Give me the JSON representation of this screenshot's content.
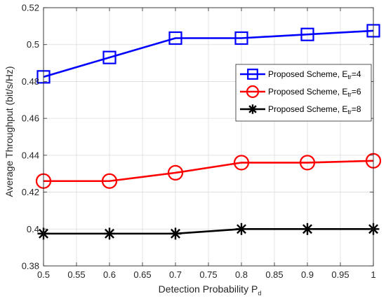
{
  "chart_data": {
    "type": "line",
    "xlabel": "Detection Probability P",
    "xlabel_sub": "d",
    "ylabel": "Average Throughput (bit/s/Hz)",
    "xlim": [
      0.5,
      1.0
    ],
    "ylim": [
      0.38,
      0.52
    ],
    "xticks": [
      0.5,
      0.55,
      0.6,
      0.65,
      0.7,
      0.75,
      0.8,
      0.85,
      0.9,
      0.95,
      1.0
    ],
    "xtick_labels": [
      "0.5",
      "0.55",
      "0.6",
      "0.65",
      "0.7",
      "0.75",
      "0.8",
      "0.85",
      "0.9",
      "0.95",
      "1"
    ],
    "yticks": [
      0.38,
      0.4,
      0.42,
      0.44,
      0.46,
      0.48,
      0.5,
      0.52
    ],
    "ytick_labels": [
      "0.38",
      "0.4",
      "0.42",
      "0.44",
      "0.46",
      "0.48",
      "0.5",
      "0.52"
    ],
    "grid": true,
    "legend_position": "right",
    "x": [
      0.5,
      0.6,
      0.7,
      0.8,
      0.9,
      1.0
    ],
    "series": [
      {
        "name": "Proposed Scheme, E",
        "name_sub": "tr",
        "name_suffix": "=4",
        "color": "#0000ff",
        "marker": "square",
        "values": [
          0.4825,
          0.493,
          0.5035,
          0.5035,
          0.5055,
          0.5075
        ]
      },
      {
        "name": "Proposed Scheme, E",
        "name_sub": "tr",
        "name_suffix": "=6",
        "color": "#ff0000",
        "marker": "circle",
        "values": [
          0.426,
          0.426,
          0.4305,
          0.436,
          0.436,
          0.437
        ]
      },
      {
        "name": "Proposed Scheme, E",
        "name_sub": "tr",
        "name_suffix": "=8",
        "color": "#000000",
        "marker": "asterisk",
        "values": [
          0.3975,
          0.3975,
          0.3975,
          0.4,
          0.4,
          0.4
        ]
      }
    ]
  }
}
